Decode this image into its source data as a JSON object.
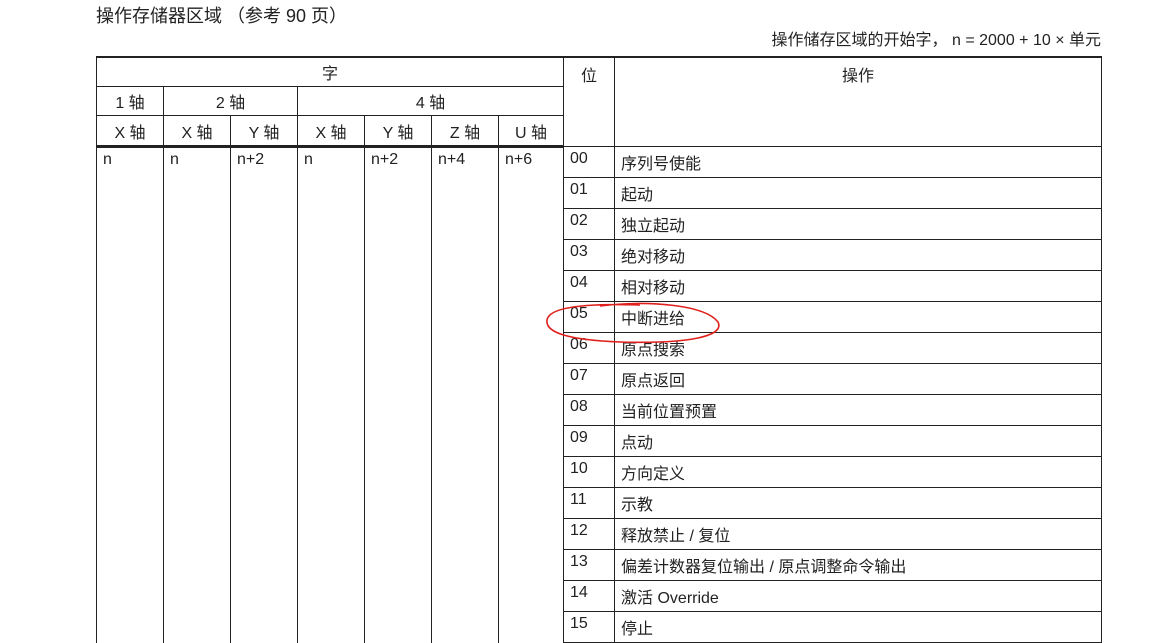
{
  "title": "操作存储器区域 （参考 90 页）",
  "note": "操作储存区域的开始字， n = 2000 + 10 × 单元",
  "header": {
    "word": "字",
    "bit": "位",
    "operation": "操作",
    "axis_groups": [
      "1 轴",
      "2 轴",
      "4 轴"
    ],
    "axes": [
      "X 轴",
      "X 轴",
      "Y 轴",
      "X 轴",
      "Y 轴",
      "Z 轴",
      "U 轴"
    ]
  },
  "word_values": [
    "n",
    "n",
    "n+2",
    "n",
    "n+2",
    "n+4",
    "n+6"
  ],
  "rows": [
    {
      "bit": "00",
      "op": "序列号使能"
    },
    {
      "bit": "01",
      "op": "起动"
    },
    {
      "bit": "02",
      "op": "独立起动"
    },
    {
      "bit": "03",
      "op": "绝对移动"
    },
    {
      "bit": "04",
      "op": "相对移动"
    },
    {
      "bit": "05",
      "op": "中断进给"
    },
    {
      "bit": "06",
      "op": "原点搜索"
    },
    {
      "bit": "07",
      "op": "原点返回"
    },
    {
      "bit": "08",
      "op": "当前位置预置"
    },
    {
      "bit": "09",
      "op": "点动"
    },
    {
      "bit": "10",
      "op": "方向定义"
    },
    {
      "bit": "11",
      "op": "示教"
    },
    {
      "bit": "12",
      "op": "释放禁止 / 复位"
    },
    {
      "bit": "13",
      "op": "偏差计数器复位输出 / 原点调整命令输出"
    },
    {
      "bit": "14",
      "op": "激活 Override"
    },
    {
      "bit": "15",
      "op": "停止"
    }
  ],
  "annotation_color": "#e0201c"
}
